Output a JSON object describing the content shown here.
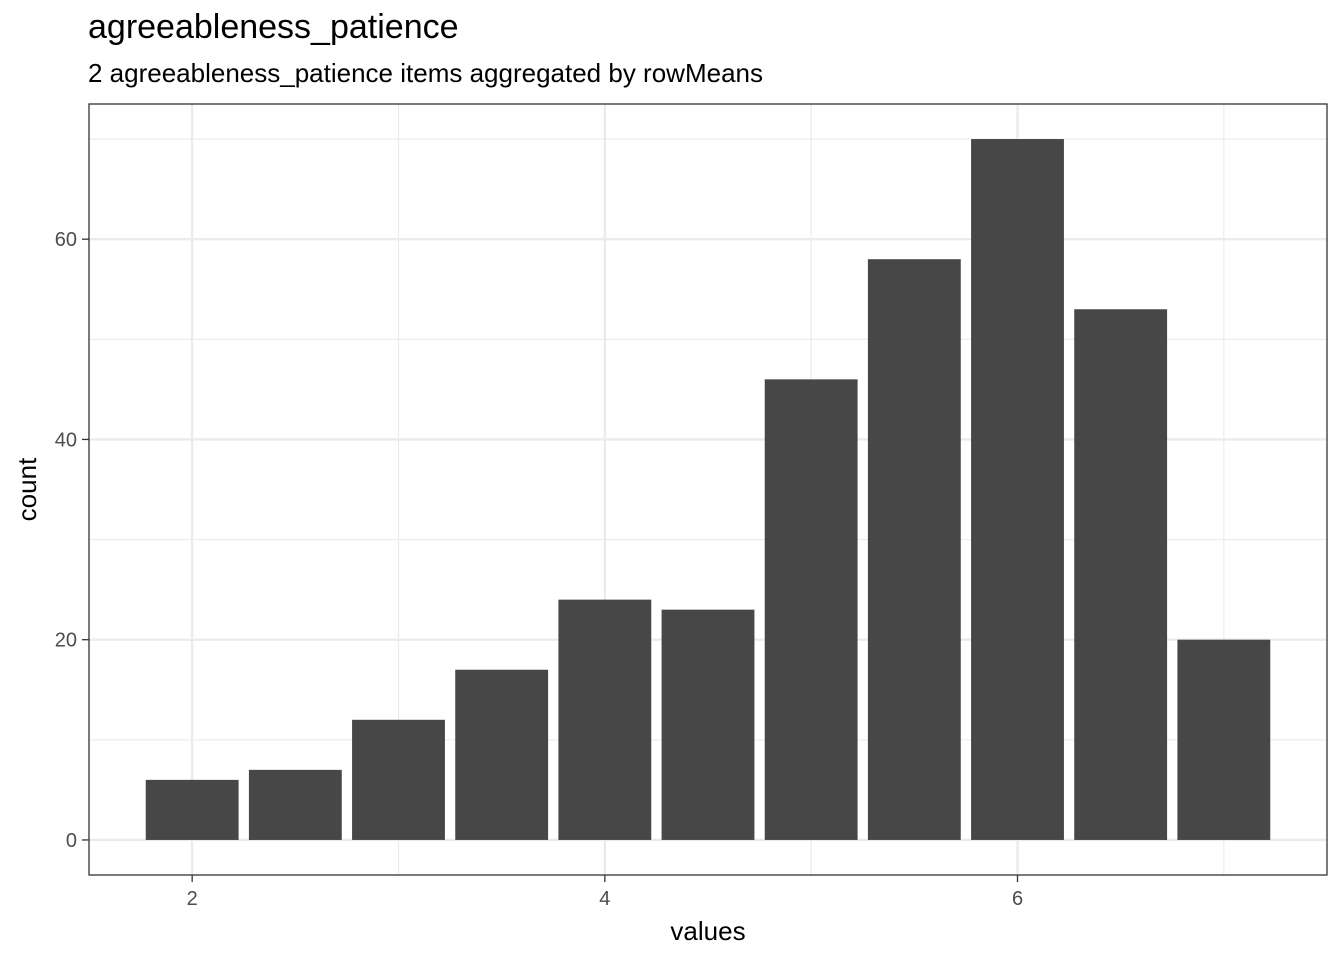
{
  "chart_data": {
    "type": "bar",
    "title": "agreeableness_patience",
    "subtitle": "2 agreeableness_patience items aggregated by rowMeans",
    "xlabel": "values",
    "ylabel": "count",
    "x": [
      2,
      2.5,
      3,
      3.5,
      4,
      4.5,
      5,
      5.5,
      6,
      6.5,
      7
    ],
    "values": [
      6,
      7,
      12,
      17,
      24,
      23,
      46,
      58,
      70,
      53,
      20
    ],
    "bin_width": 0.45,
    "xlim": [
      1.5,
      7.5
    ],
    "ylim": [
      -3.5,
      73.5
    ],
    "x_ticks": [
      2,
      4,
      6
    ],
    "y_ticks": [
      0,
      20,
      40,
      60
    ],
    "x_tick_labels": [
      "2",
      "4",
      "6"
    ],
    "y_tick_labels": [
      "0",
      "20",
      "40",
      "60"
    ],
    "grid": true,
    "bar_color": "#474747",
    "grid_color": "#ebebeb",
    "panel_border_color": "#333333"
  }
}
